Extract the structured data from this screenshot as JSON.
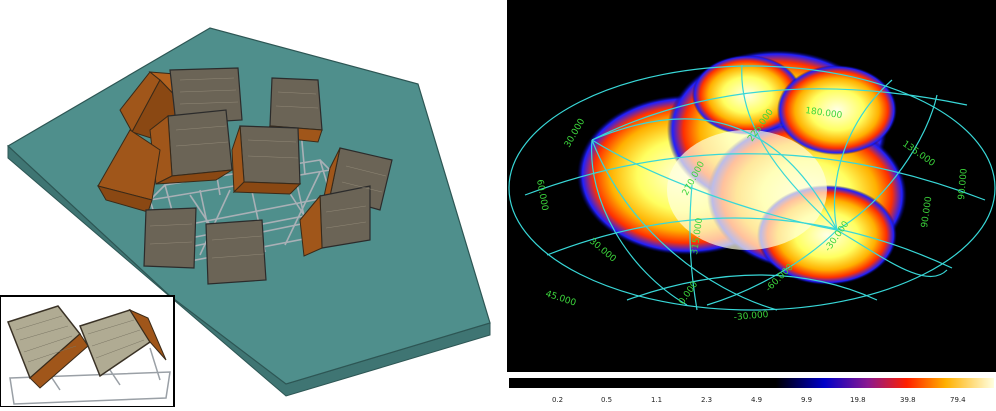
{
  "colors": {
    "platform_top": "#4f8f8c",
    "platform_side": "#3f7573",
    "module_face": "#6b6456",
    "module_box": "#a0561a",
    "frame": "#9aa0a6",
    "sky_bg": "#000000",
    "grid_line": "#38d7d7",
    "grid_label": "#3cd63c"
  },
  "icons": {
    "telescope": "detector-module-icon"
  },
  "sky_map": {
    "grid_labels": [
      {
        "id": "lon-180",
        "text": "180.000"
      },
      {
        "id": "lon-225",
        "text": "225.000"
      },
      {
        "id": "lon-270",
        "text": "270.000"
      },
      {
        "id": "lon-315",
        "text": "315.000"
      },
      {
        "id": "lon-135",
        "text": "135.000"
      },
      {
        "id": "lon-90",
        "text": "90.000"
      },
      {
        "id": "lon-0",
        "text": "0.000"
      },
      {
        "id": "lat-30",
        "text": "30.000"
      },
      {
        "id": "lat-60",
        "text": "60.000"
      },
      {
        "id": "lat-30b",
        "text": "30.000"
      },
      {
        "id": "lat-45",
        "text": "45.000"
      },
      {
        "id": "lat-m30",
        "text": "-30.000"
      },
      {
        "id": "lat-m60",
        "text": "-60.000"
      },
      {
        "id": "lat-m30b",
        "text": "-30.000"
      },
      {
        "id": "lat-90",
        "text": "90.000"
      }
    ],
    "colorbar_ticks": [
      "0.2",
      "0.5",
      "1.1",
      "2.3",
      "4.9",
      "9.9",
      "19.8",
      "39.8",
      "79.4"
    ]
  }
}
